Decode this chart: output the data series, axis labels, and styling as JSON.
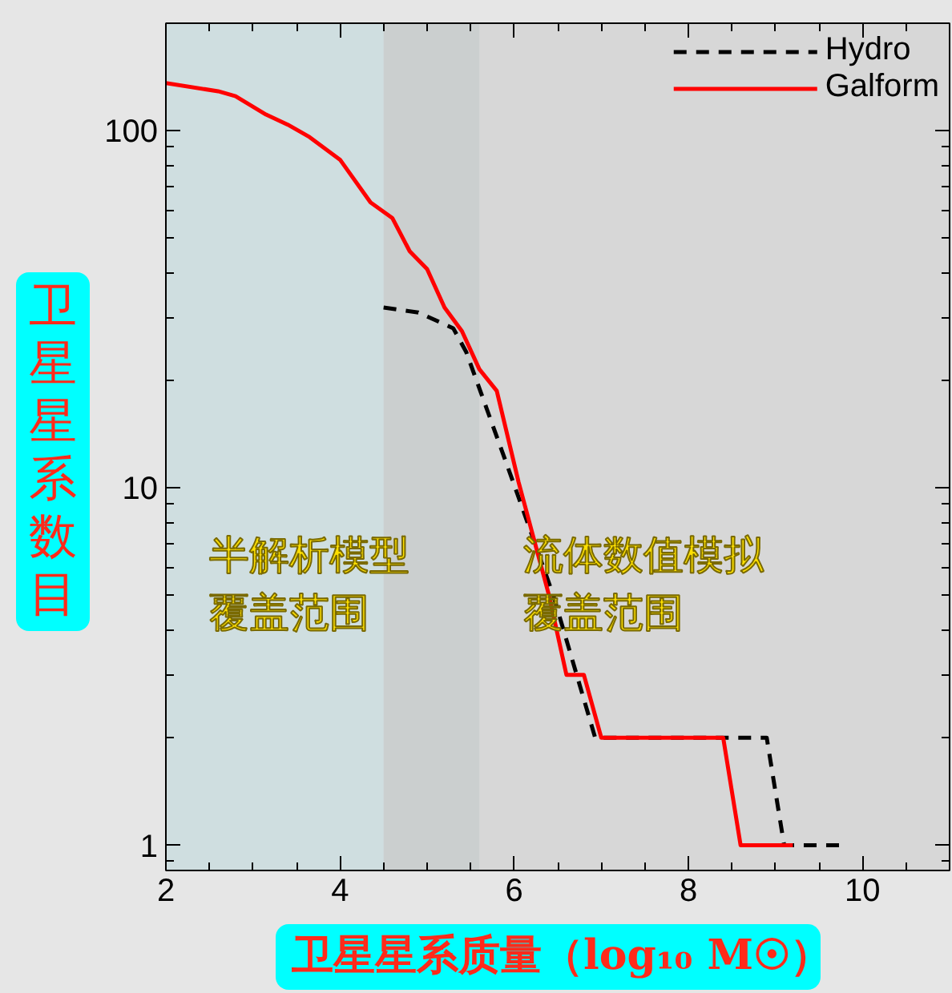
{
  "chart_data": {
    "type": "line",
    "xlabel": "卫星星系质量（log₁₀ M☉）",
    "ylabel": "卫星星系数目",
    "log": "y",
    "xlim": [
      2,
      11
    ],
    "ylim": [
      0.85,
      200
    ],
    "xticks": [
      2,
      4,
      6,
      8,
      10
    ],
    "yticks": [
      1,
      10,
      100
    ],
    "legend": "top right",
    "grid": false,
    "bands": [
      {
        "axis": "x",
        "from": 2,
        "to": 5.6,
        "label": "半解析模型覆盖范围",
        "color": "#cfdee0"
      },
      {
        "axis": "x",
        "from": 4.5,
        "to": 11,
        "label": "流体数值模拟覆盖范围",
        "color": "#c9c9c9"
      }
    ],
    "series": [
      {
        "name": "Hydro",
        "color": "#000000",
        "line_style": "dashed",
        "x": [
          4.5,
          4.9,
          5.3,
          5.45,
          6.0,
          6.45,
          6.93,
          8.9,
          9.1,
          9.8
        ],
        "values": [
          32,
          31,
          28,
          24,
          10.2,
          5.0,
          2,
          2,
          1,
          1
        ]
      },
      {
        "name": "Galform",
        "color": "#ff0000",
        "line_style": "solid",
        "x": [
          2,
          2.6,
          2.8,
          3.15,
          3.4,
          3.65,
          4.0,
          4.35,
          4.6,
          4.8,
          5.0,
          5.2,
          5.4,
          5.6,
          5.8,
          6.05,
          6.4,
          6.6,
          6.8,
          7.0,
          8.4,
          8.6,
          9.2
        ],
        "values": [
          136,
          129,
          125,
          111,
          104,
          96,
          83,
          63,
          57,
          46,
          41,
          32,
          27.5,
          21.5,
          18.7,
          10.4,
          5.0,
          3,
          3,
          2,
          2,
          1,
          1
        ]
      }
    ]
  }
}
